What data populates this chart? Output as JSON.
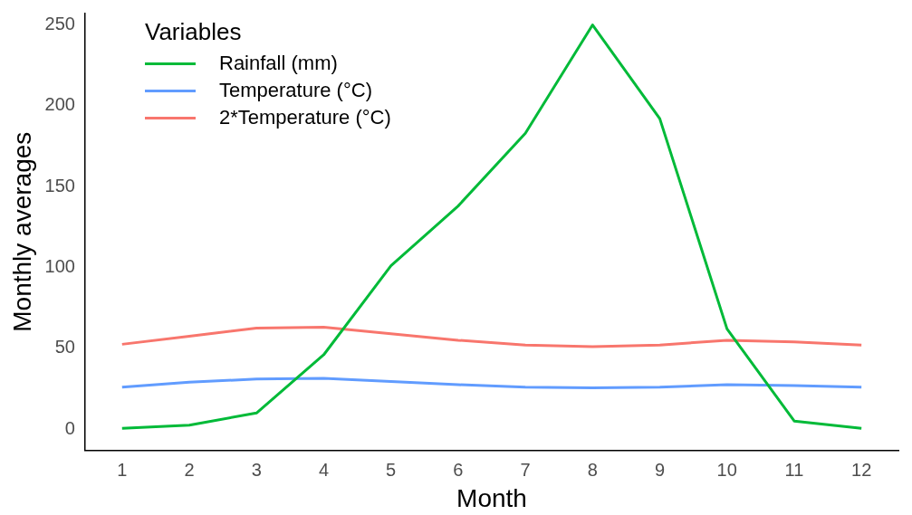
{
  "chart_data": {
    "type": "line",
    "xlabel": "Month",
    "ylabel": "Monthly averages",
    "legend_title": "Variables",
    "legend": "top left",
    "grid": false,
    "marker": "none",
    "line_style": "solid",
    "x": [
      1,
      2,
      3,
      4,
      5,
      6,
      7,
      8,
      9,
      10,
      11,
      12
    ],
    "xlim": [
      0.45,
      12.55
    ],
    "xticks": [
      1,
      2,
      3,
      4,
      5,
      6,
      7,
      8,
      9,
      10,
      11,
      12
    ],
    "ylim": [
      -13,
      257
    ],
    "yticks": [
      0,
      50,
      100,
      150,
      200,
      250
    ],
    "series": [
      {
        "name": "Rainfall (mm)",
        "color": "#00ba38",
        "values": [
          0.5,
          2.5,
          10,
          46,
          101,
          138,
          183,
          250,
          192,
          62,
          5,
          0.5
        ]
      },
      {
        "name": "Temperature (°C)",
        "color": "#619cff",
        "values": [
          26,
          29,
          31,
          31.5,
          29.5,
          27.5,
          26,
          25.5,
          26,
          27.5,
          27,
          26
        ]
      },
      {
        "name": "2*Temperature (°C)",
        "color": "#f8766d",
        "values": [
          52.5,
          57.5,
          62.5,
          63,
          59,
          55,
          52,
          51,
          52,
          55,
          54,
          52
        ]
      }
    ]
  }
}
